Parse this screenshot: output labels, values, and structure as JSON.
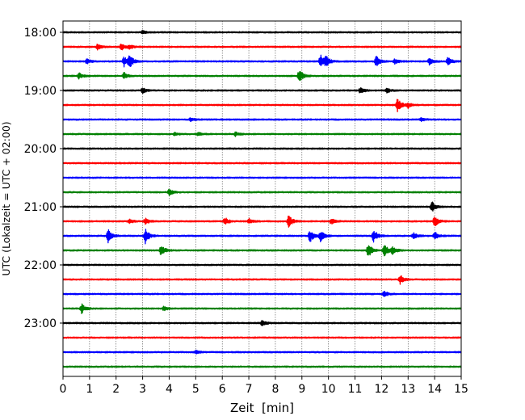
{
  "chart_data": {
    "type": "line",
    "title": "",
    "xlabel": "Zeit  [min]",
    "ylabel": "UTC (Lokalzeit = UTC + 02:00)",
    "xlim": [
      0,
      15
    ],
    "x_ticks": [
      "0",
      "1",
      "2",
      "3",
      "4",
      "5",
      "6",
      "7",
      "8",
      "9",
      "10",
      "11",
      "12",
      "13",
      "14",
      "15"
    ],
    "y_ticks": [
      "18:00",
      "19:00",
      "20:00",
      "21:00",
      "22:00",
      "23:00"
    ],
    "grid": "x",
    "colors": [
      "#000000",
      "#ff0000",
      "#0000ff",
      "#008000"
    ],
    "rows": [
      {
        "start": "18:00",
        "color": "#000000",
        "events": [
          [
            3.0,
            0.1
          ]
        ]
      },
      {
        "start": "18:15",
        "color": "#ff0000",
        "events": [
          [
            1.3,
            0.18
          ],
          [
            2.2,
            0.22
          ],
          [
            2.5,
            0.15
          ]
        ]
      },
      {
        "start": "18:30",
        "color": "#0000ff",
        "events": [
          [
            0.9,
            0.15
          ],
          [
            2.3,
            0.32
          ],
          [
            2.5,
            0.42
          ],
          [
            9.7,
            0.42
          ],
          [
            9.9,
            0.32
          ],
          [
            11.8,
            0.35
          ],
          [
            12.5,
            0.15
          ],
          [
            13.8,
            0.2
          ],
          [
            14.5,
            0.3
          ]
        ]
      },
      {
        "start": "18:45",
        "color": "#008000",
        "events": [
          [
            0.6,
            0.18
          ],
          [
            2.3,
            0.22
          ],
          [
            8.9,
            0.45
          ]
        ]
      },
      {
        "start": "19:00",
        "color": "#000000",
        "events": [
          [
            3.0,
            0.18
          ],
          [
            11.2,
            0.22
          ],
          [
            12.2,
            0.15
          ]
        ]
      },
      {
        "start": "19:15",
        "color": "#ff0000",
        "events": [
          [
            12.6,
            0.45
          ],
          [
            13.0,
            0.18
          ]
        ]
      },
      {
        "start": "19:30",
        "color": "#0000ff",
        "events": [
          [
            4.8,
            0.1
          ],
          [
            13.5,
            0.1
          ]
        ]
      },
      {
        "start": "19:45",
        "color": "#008000",
        "events": [
          [
            4.2,
            0.12
          ],
          [
            5.1,
            0.12
          ],
          [
            6.5,
            0.12
          ]
        ]
      },
      {
        "start": "20:00",
        "color": "#000000",
        "events": []
      },
      {
        "start": "20:15",
        "color": "#ff0000",
        "events": []
      },
      {
        "start": "20:30",
        "color": "#0000ff",
        "events": []
      },
      {
        "start": "20:45",
        "color": "#008000",
        "events": [
          [
            4.0,
            0.2
          ]
        ]
      },
      {
        "start": "21:00",
        "color": "#000000",
        "events": [
          [
            13.9,
            0.35
          ]
        ]
      },
      {
        "start": "21:15",
        "color": "#ff0000",
        "events": [
          [
            2.5,
            0.15
          ],
          [
            3.1,
            0.2
          ],
          [
            6.1,
            0.25
          ],
          [
            7.0,
            0.18
          ],
          [
            8.5,
            0.38
          ],
          [
            10.1,
            0.18
          ],
          [
            14.0,
            0.35
          ]
        ]
      },
      {
        "start": "21:30",
        "color": "#0000ff",
        "events": [
          [
            1.7,
            0.42
          ],
          [
            3.1,
            0.5
          ],
          [
            9.3,
            0.42
          ],
          [
            9.7,
            0.38
          ],
          [
            11.7,
            0.42
          ],
          [
            13.2,
            0.2
          ],
          [
            14.0,
            0.25
          ]
        ]
      },
      {
        "start": "21:45",
        "color": "#008000",
        "events": [
          [
            3.7,
            0.4
          ],
          [
            11.5,
            0.45
          ],
          [
            12.1,
            0.4
          ],
          [
            12.4,
            0.3
          ]
        ]
      },
      {
        "start": "22:00",
        "color": "#000000",
        "events": []
      },
      {
        "start": "22:15",
        "color": "#ff0000",
        "events": [
          [
            12.7,
            0.3
          ]
        ]
      },
      {
        "start": "22:30",
        "color": "#0000ff",
        "events": [
          [
            12.1,
            0.18
          ]
        ]
      },
      {
        "start": "22:45",
        "color": "#008000",
        "events": [
          [
            0.7,
            0.3
          ],
          [
            3.8,
            0.15
          ]
        ]
      },
      {
        "start": "23:00",
        "color": "#000000",
        "events": [
          [
            7.5,
            0.18
          ]
        ]
      },
      {
        "start": "23:15",
        "color": "#ff0000",
        "events": []
      },
      {
        "start": "23:30",
        "color": "#0000ff",
        "events": [
          [
            5.0,
            0.1
          ]
        ]
      },
      {
        "start": "23:45",
        "color": "#008000",
        "events": []
      }
    ]
  }
}
